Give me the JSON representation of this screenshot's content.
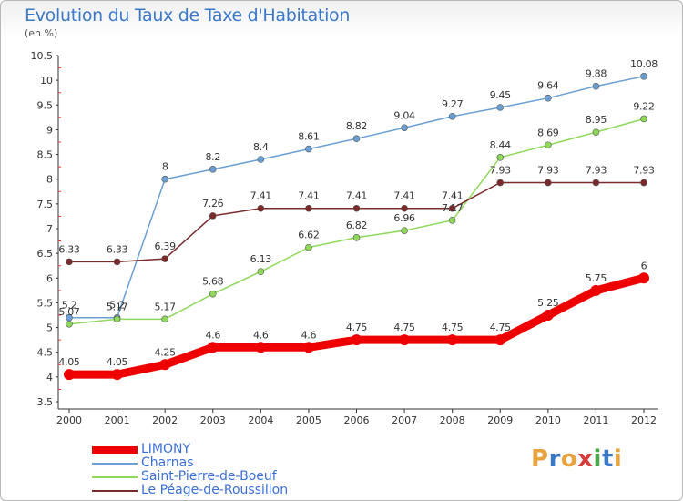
{
  "title": "Evolution du Taux de Taxe d'Habitation",
  "subtitle": "(en %)",
  "brand": {
    "letters": [
      "P",
      "r",
      "o",
      "x",
      "i",
      "t",
      "i"
    ],
    "colors": [
      "#e8a33c",
      "#3a78c9",
      "#e8a33c",
      "#d83c3c",
      "#4aa84a",
      "#3a78c9",
      "#e8a33c"
    ]
  },
  "chart_data": {
    "type": "line",
    "title": "Evolution du Taux de Taxe d'Habitation",
    "ylabel": "(en %)",
    "xlabel": "",
    "x": [
      "2000",
      "2001",
      "2002",
      "2003",
      "2004",
      "2005",
      "2006",
      "2007",
      "2008",
      "2009",
      "2010",
      "2011",
      "2012"
    ],
    "ylim": [
      3.5,
      10.5
    ],
    "yticks": [
      "3.5",
      "4",
      "4.5",
      "5",
      "5.5",
      "6",
      "6.5",
      "7",
      "7.5",
      "8",
      "8.5",
      "9",
      "9.5",
      "10",
      "10.5"
    ],
    "grid": false,
    "legend": "bottom-left",
    "series": [
      {
        "name": "LIMONY",
        "color": "#ee0000",
        "width": 9,
        "marker_r": 6,
        "values": [
          4.05,
          4.05,
          4.25,
          4.6,
          4.6,
          4.6,
          4.75,
          4.75,
          4.75,
          4.75,
          5.25,
          5.75,
          6
        ],
        "labels": [
          "4.05",
          "4.05",
          "4.25",
          "4.6",
          "4.6",
          "4.6",
          "4.75",
          "4.75",
          "4.75",
          "4.75",
          "5.25",
          "5.75",
          "6"
        ]
      },
      {
        "name": "Charnas",
        "color": "#6a9fd4",
        "width": 1.5,
        "marker_r": 3.5,
        "values": [
          5.2,
          5.2,
          8,
          8.2,
          8.4,
          8.61,
          8.82,
          9.04,
          9.27,
          9.45,
          9.64,
          9.88,
          10.08
        ],
        "labels": [
          "5.2",
          "5.2",
          "8",
          "8.2",
          "8.4",
          "8.61",
          "8.82",
          "9.04",
          "9.27",
          "9.45",
          "9.64",
          "9.88",
          "10.08"
        ]
      },
      {
        "name": "Saint-Pierre-de-Boeuf",
        "color": "#8fd95a",
        "width": 1.5,
        "marker_r": 3.5,
        "values": [
          5.07,
          5.17,
          5.17,
          5.68,
          6.13,
          6.62,
          6.82,
          6.96,
          7.17,
          8.44,
          8.69,
          8.95,
          9.22
        ],
        "labels": [
          "5.07",
          "5.17",
          "5.17",
          "5.68",
          "6.13",
          "6.62",
          "6.82",
          "6.96",
          "7.17",
          "8.44",
          "8.69",
          "8.95",
          "9.22"
        ]
      },
      {
        "name": "Le Péage-de-Roussillon",
        "color": "#7a2a2a",
        "width": 1.5,
        "marker_r": 3.5,
        "values": [
          6.33,
          6.33,
          6.39,
          7.26,
          7.41,
          7.41,
          7.41,
          7.41,
          7.41,
          7.93,
          7.93,
          7.93,
          7.93
        ],
        "labels": [
          "6.33",
          "6.33",
          "6.39",
          "7.26",
          "7.41",
          "7.41",
          "7.41",
          "7.41",
          "7.41",
          "7.93",
          "7.93",
          "7.93",
          "7.93"
        ]
      }
    ]
  }
}
